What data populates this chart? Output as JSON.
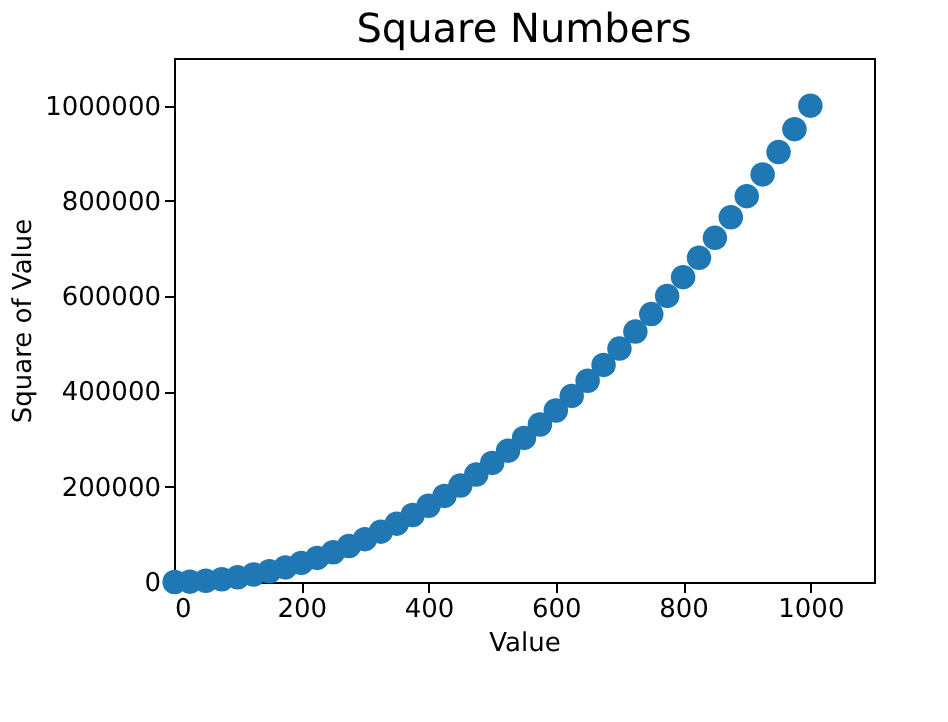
{
  "chart_data": {
    "type": "scatter",
    "title": "Square Numbers",
    "xlabel": "Value",
    "ylabel": "Square of Value",
    "x": [
      1,
      25,
      50,
      75,
      100,
      125,
      150,
      175,
      200,
      225,
      250,
      275,
      300,
      325,
      350,
      375,
      400,
      425,
      450,
      475,
      500,
      525,
      550,
      575,
      600,
      625,
      650,
      675,
      700,
      725,
      750,
      775,
      800,
      825,
      850,
      875,
      900,
      925,
      950,
      975,
      1000
    ],
    "series": [
      {
        "color": "#1f77b4",
        "values": [
          1,
          625,
          2500,
          5625,
          10000,
          15625,
          22500,
          30625,
          40000,
          50625,
          62500,
          75625,
          90000,
          105625,
          122500,
          140625,
          160000,
          180625,
          202500,
          225625,
          250000,
          275625,
          302500,
          330625,
          360000,
          390625,
          422500,
          455625,
          490000,
          525625,
          562500,
          600625,
          640000,
          680625,
          722500,
          765625,
          810000,
          855625,
          902500,
          950625,
          1000000
        ]
      }
    ],
    "xlim": [
      0,
      1100
    ],
    "xticks": [
      0,
      200,
      400,
      600,
      800,
      1000
    ],
    "ylim": [
      0,
      1100000
    ],
    "yticks": [
      0,
      200000,
      400000,
      600000,
      800000,
      1000000
    ],
    "marker": "circle",
    "grid": false
  }
}
